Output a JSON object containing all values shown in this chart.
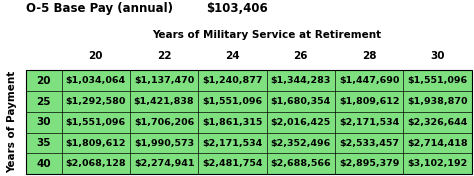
{
  "title_left": "O-5 Base Pay (annual)",
  "title_right": "$103,406",
  "col_header_label": "Years of Military Service at Retirement",
  "col_headers": [
    "20",
    "22",
    "24",
    "26",
    "28",
    "30"
  ],
  "row_header_label": "Years of Payment",
  "row_headers": [
    "20",
    "25",
    "30",
    "35",
    "40"
  ],
  "table_data": [
    [
      "$1,034,064",
      "$1,137,470",
      "$1,240,877",
      "$1,344,283",
      "$1,447,690",
      "$1,551,096"
    ],
    [
      "$1,292,580",
      "$1,421,838",
      "$1,551,096",
      "$1,680,354",
      "$1,809,612",
      "$1,938,870"
    ],
    [
      "$1,551,096",
      "$1,706,206",
      "$1,861,315",
      "$2,016,425",
      "$2,171,534",
      "$2,326,644"
    ],
    [
      "$1,809,612",
      "$1,990,573",
      "$2,171,534",
      "$2,352,496",
      "$2,533,457",
      "$2,714,418"
    ],
    [
      "$2,068,128",
      "$2,274,941",
      "$2,481,754",
      "$2,688,566",
      "$2,895,379",
      "$3,102,192"
    ]
  ],
  "green_color": "#7EE07E",
  "bg_color": "#ffffff",
  "border_color": "#000000",
  "text_color": "#000000",
  "cell_font_size": 6.8,
  "header_font_size": 7.5,
  "title_font_size": 8.5,
  "fig_width": 4.74,
  "fig_height": 1.76,
  "dpi": 100
}
